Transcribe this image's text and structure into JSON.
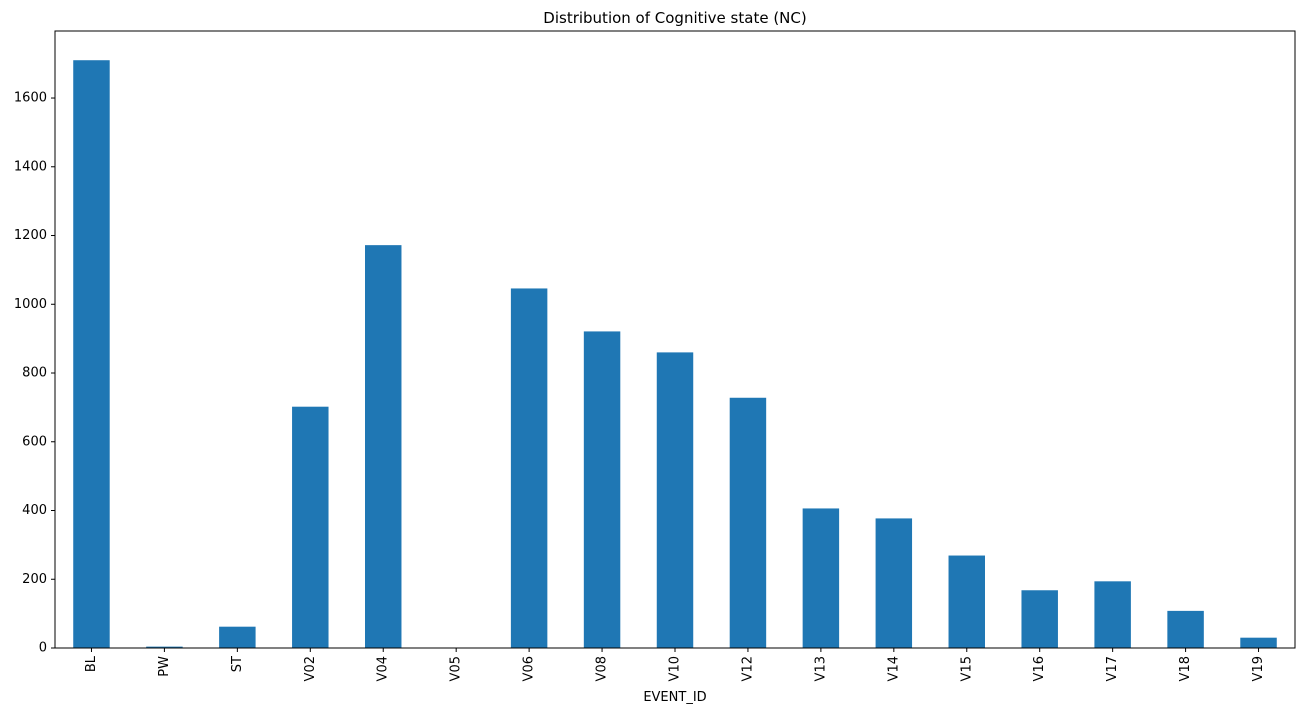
{
  "chart_data": {
    "type": "bar",
    "title": "Distribution of Cognitive state (NC)",
    "xlabel": "EVENT_ID",
    "ylabel": "",
    "categories": [
      "BL",
      "PW",
      "ST",
      "V02",
      "V04",
      "V05",
      "V06",
      "V08",
      "V10",
      "V12",
      "V13",
      "V14",
      "V15",
      "V16",
      "V17",
      "V18",
      "V19"
    ],
    "values": [
      1710,
      4,
      62,
      702,
      1172,
      1,
      1046,
      921,
      860,
      728,
      406,
      377,
      269,
      168,
      194,
      108,
      30
    ],
    "ylim": [
      0,
      1795
    ],
    "yticks": [
      0,
      200,
      400,
      600,
      800,
      1000,
      1200,
      1400,
      1600
    ],
    "ytick_labels": [
      "0",
      "200",
      "400",
      "600",
      "800",
      "1000",
      "1200",
      "1400",
      "1600"
    ],
    "grid": false,
    "legend": "none",
    "bar_color": "#1f77b4"
  }
}
